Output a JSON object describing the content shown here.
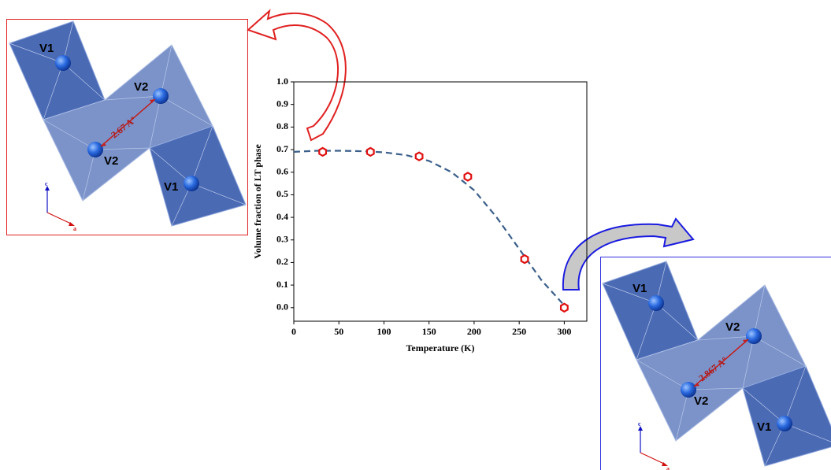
{
  "chart_data": {
    "type": "scatter",
    "x_label": "Temperature (K)",
    "y_label": "Volume fraction of LT phase",
    "x": [
      32,
      85,
      139,
      193,
      256,
      300
    ],
    "values": [
      0.69,
      0.69,
      0.67,
      0.58,
      0.215,
      0.0
    ],
    "color": "#e01010",
    "fit": {
      "color": "#3a5f8a",
      "x": [
        0,
        25,
        50,
        75,
        100,
        125,
        150,
        175,
        200,
        225,
        250,
        275,
        300
      ],
      "values": [
        0.69,
        0.695,
        0.695,
        0.693,
        0.688,
        0.675,
        0.65,
        0.6,
        0.52,
        0.4,
        0.26,
        0.12,
        0.01
      ]
    },
    "xlim": [
      0,
      325
    ],
    "ylim": [
      -0.06,
      1.0
    ],
    "xticks": [
      0,
      50,
      100,
      150,
      200,
      250,
      300
    ],
    "yticks": [
      {
        "value": 0,
        "label": "0.0"
      },
      0.1,
      0.2,
      0.3,
      0.4,
      0.5,
      0.6,
      0.7,
      0.8,
      0.9,
      {
        "value": 1,
        "label": "1.0"
      }
    ]
  },
  "left_panel": {
    "site_labels": [
      "V1",
      "V2",
      "V2",
      "V1"
    ],
    "distance": "2.67 Aº",
    "axis_c": "c",
    "axis_a": "a"
  },
  "right_panel": {
    "site_labels": [
      "V1",
      "V2",
      "V2",
      "V1"
    ],
    "distance": "2.867 Aº",
    "axis_c": "c",
    "axis_a": "a"
  }
}
